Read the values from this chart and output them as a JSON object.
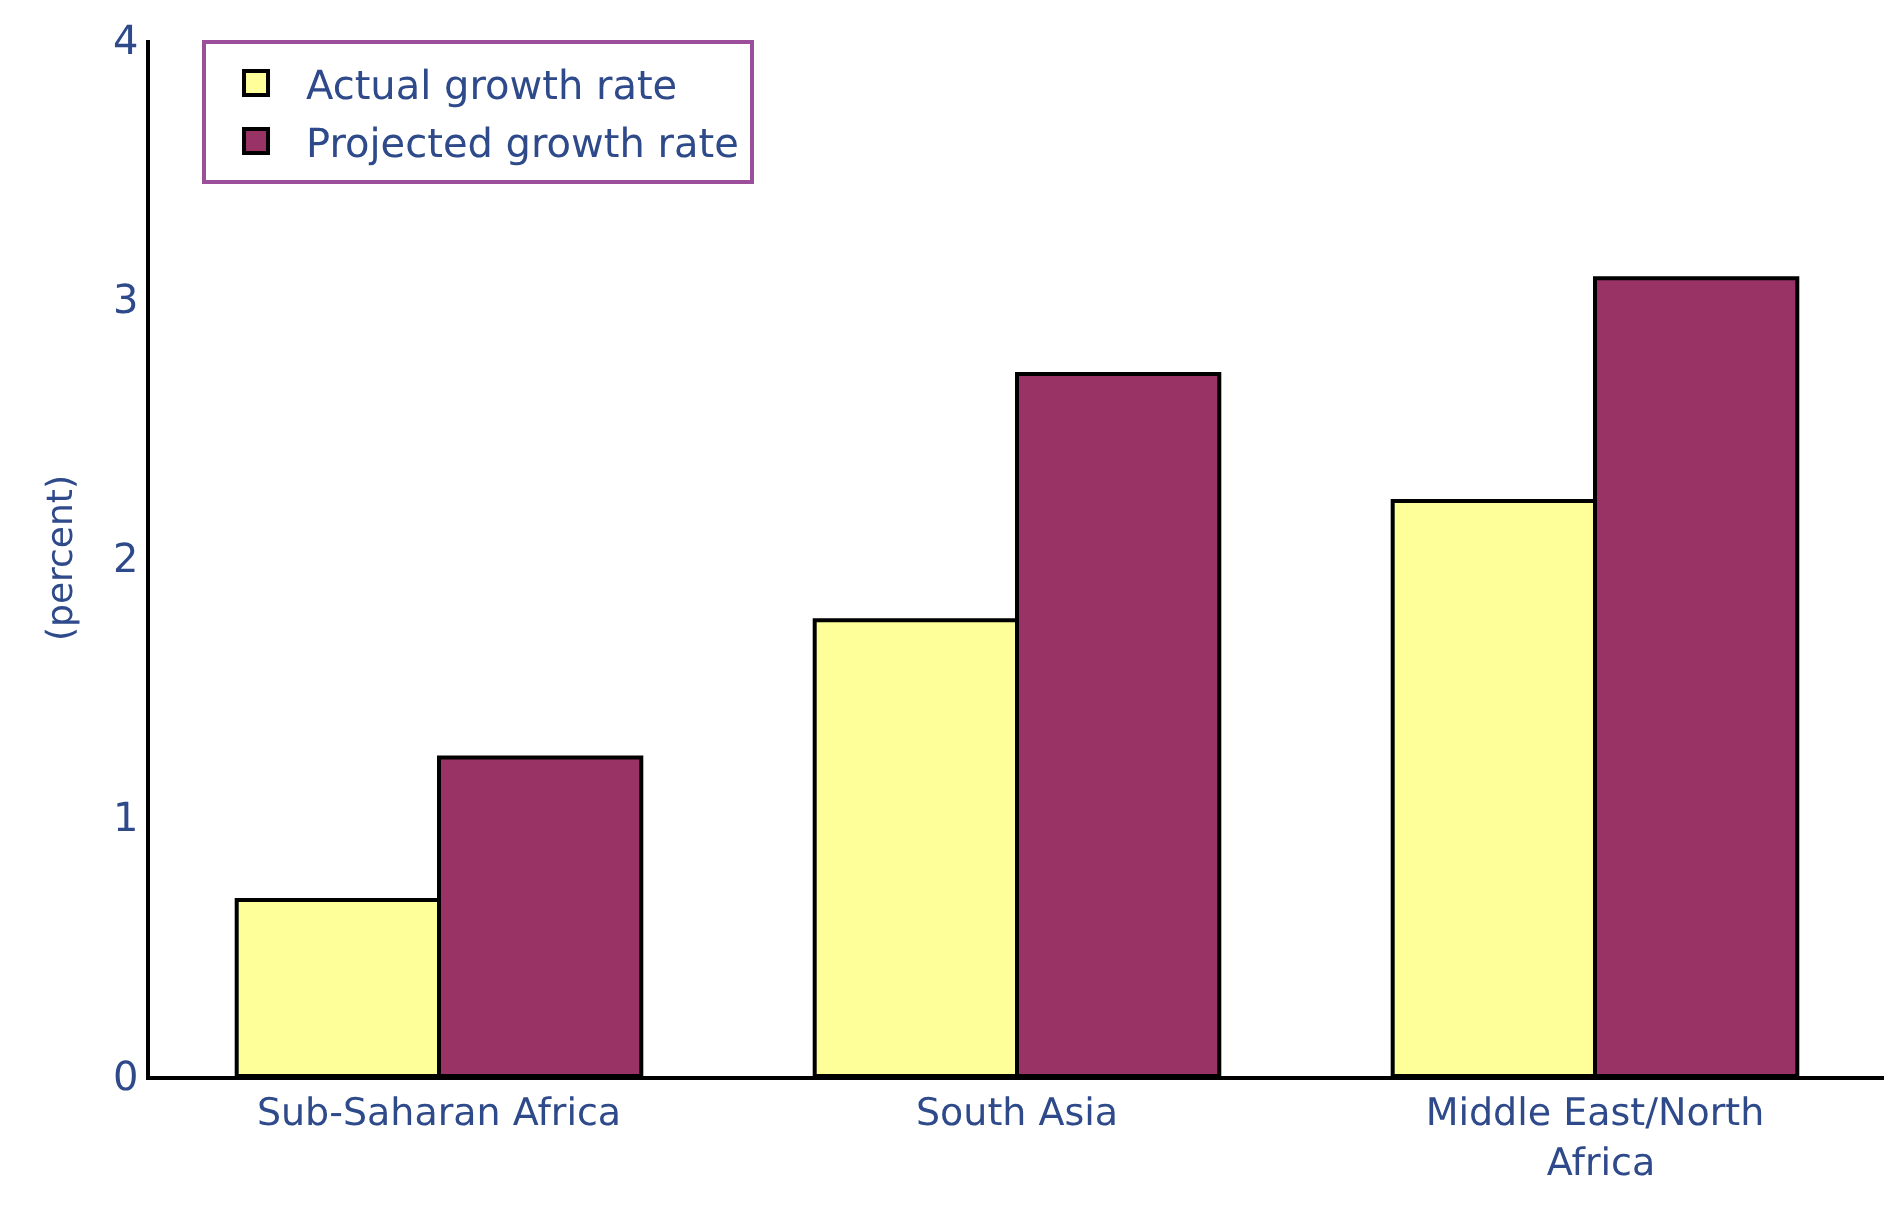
{
  "chart_data": {
    "type": "bar",
    "ylabel": "(percent)",
    "categories": [
      "Sub-Saharan Africa",
      "South Asia",
      "Middle East/North Africa"
    ],
    "series": [
      {
        "name": "Actual growth rate",
        "color": "#ffff99",
        "values": [
          0.68,
          1.76,
          2.22
        ]
      },
      {
        "name": "Projected growth rate",
        "color": "#993366",
        "values": [
          1.23,
          2.71,
          3.08
        ]
      }
    ],
    "ylim": [
      0,
      4
    ],
    "yticks": [
      0,
      1,
      2,
      3,
      4
    ],
    "grid": false,
    "legend": "top left"
  }
}
